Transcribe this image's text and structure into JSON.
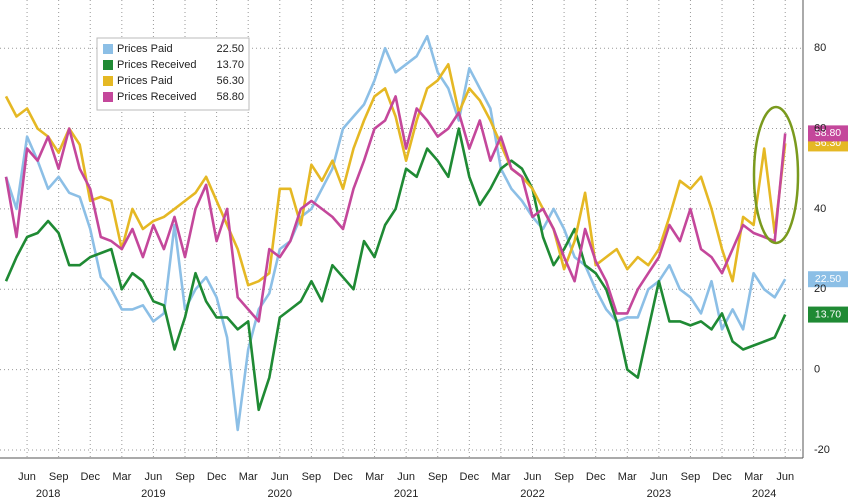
{
  "chart_data": {
    "type": "line",
    "categories": [
      "2018-04",
      "2018-05",
      "2018-06",
      "2018-07",
      "2018-08",
      "2018-09",
      "2018-10",
      "2018-11",
      "2018-12",
      "2019-01",
      "2019-02",
      "2019-03",
      "2019-04",
      "2019-05",
      "2019-06",
      "2019-07",
      "2019-08",
      "2019-09",
      "2019-10",
      "2019-11",
      "2019-12",
      "2020-01",
      "2020-02",
      "2020-03",
      "2020-04",
      "2020-05",
      "2020-06",
      "2020-07",
      "2020-08",
      "2020-09",
      "2020-10",
      "2020-11",
      "2020-12",
      "2021-01",
      "2021-02",
      "2021-03",
      "2021-04",
      "2021-05",
      "2021-06",
      "2021-07",
      "2021-08",
      "2021-09",
      "2021-10",
      "2021-11",
      "2021-12",
      "2022-01",
      "2022-02",
      "2022-03",
      "2022-04",
      "2022-05",
      "2022-06",
      "2022-07",
      "2022-08",
      "2022-09",
      "2022-10",
      "2022-11",
      "2022-12",
      "2023-01",
      "2023-02",
      "2023-03",
      "2023-04",
      "2023-05",
      "2023-06",
      "2023-07",
      "2023-08",
      "2023-09",
      "2023-10",
      "2023-11",
      "2023-12",
      "2024-01",
      "2024-02",
      "2024-03",
      "2024-04",
      "2024-05",
      "2024-06"
    ],
    "series": [
      {
        "name": "Prices Paid",
        "color": "#8cbfe6",
        "last_label": "22.50",
        "values": [
          48,
          40,
          58,
          52,
          45,
          48,
          44,
          43,
          35,
          23,
          20,
          15,
          15,
          16,
          12,
          14,
          36,
          15,
          20,
          23,
          18,
          8,
          -15,
          5,
          15,
          19,
          30,
          32,
          38,
          40,
          45,
          50,
          60,
          63,
          66,
          72,
          80,
          74,
          76,
          78,
          83,
          74,
          70,
          62,
          75,
          70,
          65,
          50,
          45,
          42,
          38,
          35,
          40,
          35,
          28,
          26,
          20,
          15,
          12,
          13,
          13,
          20,
          22,
          26,
          20,
          18,
          14,
          22,
          10,
          15,
          10,
          24,
          20,
          18,
          22.5
        ]
      },
      {
        "name": "Prices Received",
        "color": "#1f8a34",
        "last_label": "13.70",
        "values": [
          22,
          28,
          33,
          34,
          37,
          34,
          26,
          26,
          28,
          29,
          30,
          20,
          24,
          22,
          17,
          16,
          5,
          13,
          24,
          17,
          13,
          13,
          10,
          12,
          -10,
          -2,
          13,
          15,
          17,
          22,
          17,
          26,
          23,
          20,
          32,
          28,
          36,
          40,
          50,
          48,
          55,
          52,
          48,
          60,
          48,
          41,
          45,
          50,
          52,
          50,
          45,
          33,
          26,
          30,
          35,
          26,
          24,
          20,
          12,
          0,
          -2,
          10,
          22,
          12,
          12,
          11,
          12,
          10,
          14,
          7,
          5,
          6,
          7,
          8,
          13.7
        ]
      },
      {
        "name": "Prices Paid",
        "color": "#e5b824",
        "last_label": "56.30",
        "values": [
          68,
          63,
          65,
          60,
          58,
          54,
          60,
          56,
          42,
          43,
          42,
          30,
          40,
          35,
          37,
          38,
          40,
          42,
          44,
          48,
          42,
          36,
          30,
          21,
          22,
          24,
          45,
          45,
          36,
          51,
          47,
          52,
          45,
          55,
          62,
          68,
          70,
          63,
          52,
          62,
          70,
          72,
          76,
          64,
          70,
          67,
          62,
          56,
          50,
          48,
          45,
          40,
          35,
          25,
          32,
          44,
          26,
          28,
          30,
          25,
          28,
          26,
          30,
          38,
          47,
          45,
          48,
          40,
          30,
          22,
          38,
          36,
          55,
          34,
          56.3
        ]
      },
      {
        "name": "Prices Received",
        "color": "#c4479b",
        "last_label": "58.80",
        "values": [
          48,
          33,
          55,
          52,
          58,
          50,
          60,
          50,
          45,
          33,
          32,
          30,
          35,
          28,
          36,
          30,
          38,
          28,
          40,
          46,
          32,
          40,
          18,
          15,
          12,
          30,
          28,
          32,
          40,
          42,
          40,
          38,
          35,
          45,
          52,
          60,
          62,
          68,
          55,
          65,
          62,
          58,
          60,
          64,
          55,
          62,
          52,
          58,
          50,
          48,
          38,
          40,
          35,
          28,
          22,
          35,
          27,
          22,
          14,
          14,
          20,
          24,
          28,
          36,
          32,
          40,
          30,
          28,
          24,
          30,
          36,
          34,
          33,
          32,
          58.8
        ]
      }
    ],
    "ylim": [
      -22,
      92
    ],
    "yticks": [
      -20,
      0,
      20,
      40,
      60,
      80
    ],
    "grid": true,
    "xticks": [
      {
        "value": "2018-06",
        "label": "Jun"
      },
      {
        "value": "2018-09",
        "label": "Sep"
      },
      {
        "value": "2018-12",
        "label": "Dec"
      },
      {
        "value": "2019-03",
        "label": "Mar"
      },
      {
        "value": "2019-06",
        "label": "Jun"
      },
      {
        "value": "2019-09",
        "label": "Sep"
      },
      {
        "value": "2019-12",
        "label": "Dec"
      },
      {
        "value": "2020-03",
        "label": "Mar"
      },
      {
        "value": "2020-06",
        "label": "Jun"
      },
      {
        "value": "2020-09",
        "label": "Sep"
      },
      {
        "value": "2020-12",
        "label": "Dec"
      },
      {
        "value": "2021-03",
        "label": "Mar"
      },
      {
        "value": "2021-06",
        "label": "Jun"
      },
      {
        "value": "2021-09",
        "label": "Sep"
      },
      {
        "value": "2021-12",
        "label": "Dec"
      },
      {
        "value": "2022-03",
        "label": "Mar"
      },
      {
        "value": "2022-06",
        "label": "Jun"
      },
      {
        "value": "2022-09",
        "label": "Sep"
      },
      {
        "value": "2022-12",
        "label": "Dec"
      },
      {
        "value": "2023-03",
        "label": "Mar"
      },
      {
        "value": "2023-06",
        "label": "Jun"
      },
      {
        "value": "2023-09",
        "label": "Sep"
      },
      {
        "value": "2023-12",
        "label": "Dec"
      },
      {
        "value": "2024-03",
        "label": "Mar"
      },
      {
        "value": "2024-06",
        "label": "Jun"
      }
    ],
    "year_labels": [
      {
        "value": "2018-08",
        "label": "2018"
      },
      {
        "value": "2019-06",
        "label": "2019"
      },
      {
        "value": "2020-06",
        "label": "2020"
      },
      {
        "value": "2021-06",
        "label": "2021"
      },
      {
        "value": "2022-06",
        "label": "2022"
      },
      {
        "value": "2023-06",
        "label": "2023"
      },
      {
        "value": "2024-04",
        "label": "2024"
      }
    ]
  }
}
